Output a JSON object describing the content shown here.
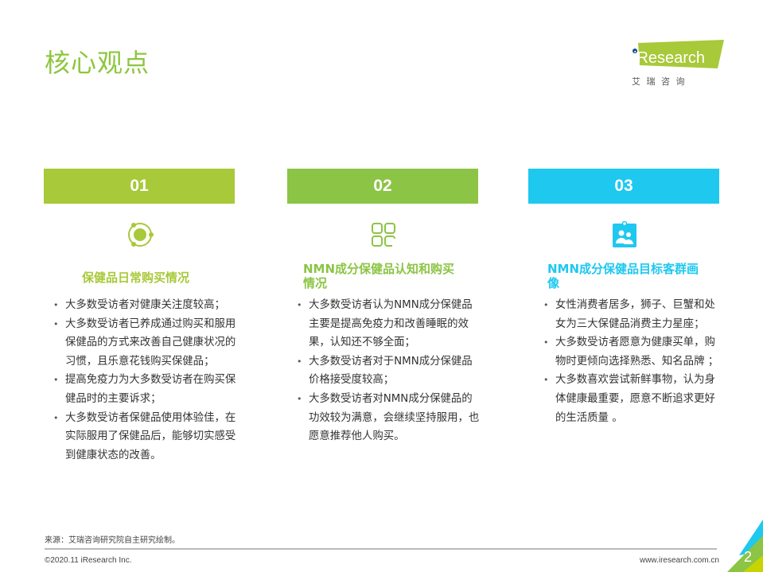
{
  "title": "核心观点",
  "logo": {
    "text": "iResearch",
    "sub": "艾 瑞 咨 询"
  },
  "colors": {
    "col1": "#a8c939",
    "col2": "#8cc445",
    "col3": "#1fc8ef",
    "title": "#8dc63f"
  },
  "columns": [
    {
      "number": "01",
      "icon": "orbit-circle-icon",
      "title": "保健品日常购买情况",
      "bullets": [
        "大多数受访者对健康关注度较高；",
        "大多数受访者已养成通过购买和服用保健品的方式来改善自己健康状况的习惯，且乐意花钱购买保健品；",
        "提高免疫力为大多数受访者在购买保健品时的主要诉求；",
        "大多数受访者保健品使用体验佳，在实际服用了保健品后，能够切实感受到健康状态的改善。"
      ]
    },
    {
      "number": "02",
      "icon": "grid-apps-icon",
      "title": "NMN成分保健品认知和购买情况",
      "bullets": [
        "大多数受访者认为NMN成分保健品主要是提高免疫力和改善睡眠的效果，认知还不够全面；",
        "大多数受访者对于NMN成分保健品价格接受度较高；",
        "大多数受访者对NMN成分保健品的功效较为满意，会继续坚持服用，也愿意推荐他人购买。"
      ]
    },
    {
      "number": "03",
      "icon": "user-badge-icon",
      "title": "NMN成分保健品目标客群画像",
      "bullets": [
        "女性消费者居多，狮子、巨蟹和处女为三大保健品消费主力星座；",
        "大多数受访者愿意为健康买单，购物时更倾向选择熟悉、知名品牌 ；",
        "大多数喜欢尝试新鲜事物，认为身体健康最重要，愿意不断追求更好的生活质量 。"
      ]
    }
  ],
  "footer": {
    "source": "来源：艾瑞咨询研究院自主研究绘制。",
    "copyright": "©2020.11 iResearch Inc.",
    "url": "www.iresearch.com.cn",
    "page": "2"
  }
}
